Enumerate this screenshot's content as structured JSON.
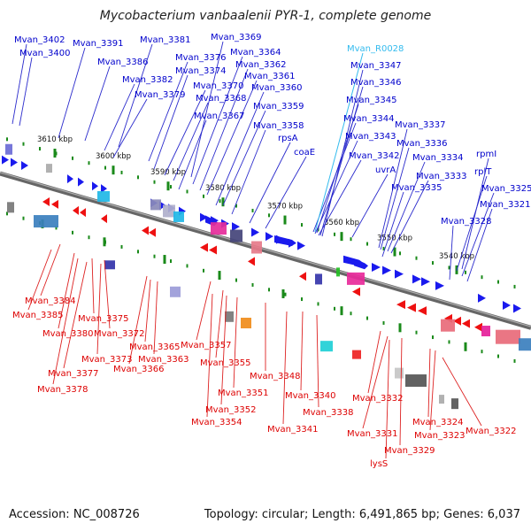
{
  "title": "Mycobacterium vanbaalenii PYR-1, complete genome",
  "footer": {
    "accession": "Accession: NC_008726",
    "summary": "Topology: circular; Length: 6,491,865 bp; Genes: 6,037"
  },
  "colors": {
    "forward_label": "#0000cc",
    "reverse_label": "#dd0000",
    "rna_label": "#33bbee",
    "backbone": "#777777",
    "tick": "#228822"
  },
  "kbp_ticks": [
    "3610 kbp",
    "3600 kbp",
    "3590 kbp",
    "3580 kbp",
    "3570 kbp",
    "3560 kbp",
    "3550 kbp",
    "3540 kbp"
  ],
  "forward_genes": [
    "Mvan_3402",
    "Mvan_3400",
    "Mvan_3391",
    "Mvan_3386",
    "Mvan_3381",
    "Mvan_3382",
    "Mvan_3379",
    "Mvan_3376",
    "Mvan_3374",
    "Mvan_3370",
    "Mvan_3368",
    "Mvan_3367",
    "Mvan_3369",
    "Mvan_3364",
    "Mvan_3362",
    "Mvan_3361",
    "Mvan_3360",
    "Mvan_3359",
    "Mvan_3358",
    "rpsA",
    "coaE",
    "Mvan_3347",
    "Mvan_3346",
    "Mvan_3345",
    "Mvan_3344",
    "Mvan_3343",
    "Mvan_3342",
    "uvrA",
    "Mvan_3337",
    "Mvan_3336",
    "Mvan_3334",
    "Mvan_3333",
    "Mvan_3335",
    "rpmI",
    "rplT",
    "Mvan_3325",
    "Mvan_3321",
    "Mvan_3328"
  ],
  "rna_genes": [
    "Mvan_R0028"
  ],
  "reverse_genes": [
    "Mvan_3384",
    "Mvan_3385",
    "Mvan_3380",
    "Mvan_3375",
    "Mvan_3372",
    "Mvan_3373",
    "Mvan_3377",
    "Mvan_3378",
    "Mvan_3365",
    "Mvan_3363",
    "Mvan_3366",
    "Mvan_3357",
    "Mvan_3355",
    "Mvan_3351",
    "Mvan_3352",
    "Mvan_3354",
    "Mvan_3348",
    "Mvan_3340",
    "Mvan_3338",
    "Mvan_3341",
    "Mvan_3332",
    "Mvan_3331",
    "Mvan_3329",
    "lysS",
    "Mvan_3324",
    "Mvan_3323",
    "Mvan_3322"
  ]
}
